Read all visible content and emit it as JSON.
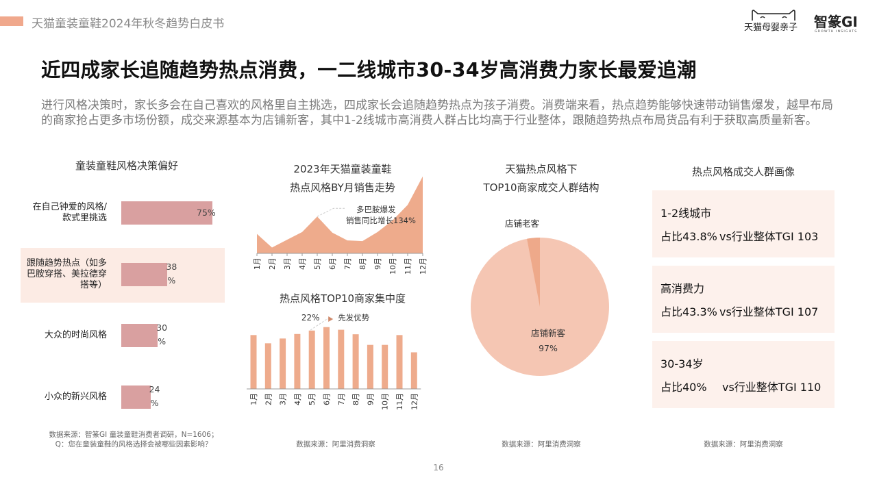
{
  "header": {
    "title": "天猫童装童鞋2024年秋冬趋势白皮书",
    "logo_tmall": "天猫母婴亲子",
    "logo_gi": "智篆GI",
    "logo_gi_sub": "GROWTH INSIGHTS"
  },
  "main_title": "近四成家长追随趋势热点消费，一二线城市30-34岁高消费力家长最爱追潮",
  "summary": "进行风格决策时，家长多会在自己喜欢的风格里自主挑选，四成家长会追随趋势热点为孩子消费。消费端来看，热点趋势能够快速带动销售爆发，越早布局的商家抢占更多市场份额，成交来源基本为店铺新客，其中1-2线城市高消费人群占比均高于行业整体，跟随趋势热点布局货品有利于获取高质量新客。",
  "page_number": "16",
  "colors": {
    "accent": "#f0a88c",
    "bar": "#d9a0a0",
    "area": "#eeab8c",
    "pie_new": "#f5c6b3",
    "pie_old": "#eea98a",
    "card_bg": "#fdf1ec",
    "highlight_bg": "#fcebe4"
  },
  "chart_data": [
    {
      "type": "bar",
      "orientation": "horizontal",
      "title": "童装童鞋风格决策偏好",
      "categories": [
        "在自己钟爱的风格/款式里挑选",
        "跟随趋势热点（如多巴胺穿搭、美拉德穿搭等）",
        "大众的时尚风格",
        "小众的新兴风格"
      ],
      "category_lines": [
        [
          "在自己钟爱的风格/",
          "款式里挑选"
        ],
        [
          "跟随趋势热点（如多",
          "巴胺穿搭、美拉德穿",
          "搭等）"
        ],
        [
          "大众的时尚风格"
        ],
        [
          "小众的新兴风格"
        ]
      ],
      "values": [
        75,
        38,
        30,
        24
      ],
      "value_labels": [
        [
          "75%"
        ],
        [
          "38",
          "%"
        ],
        [
          "30",
          "%"
        ],
        [
          "24",
          "%"
        ]
      ],
      "unit": "%",
      "highlight_index": 1,
      "source": "数据来源：智篆GI 童装童鞋消费者调研，N=1606；Q：您在童装童鞋的风格选择会被哪些因素影响？"
    },
    {
      "type": "area",
      "title": [
        "2023年天猫童装童鞋",
        "热点风格BY月销售走势"
      ],
      "x": [
        "1月",
        "2月",
        "3月",
        "4月",
        "5月",
        "6月",
        "7月",
        "8月",
        "9月",
        "10月",
        "11月",
        "12月"
      ],
      "values": [
        30,
        9,
        21,
        33,
        57,
        32,
        20,
        19,
        33,
        51,
        75,
        119
      ],
      "ylim": [
        0,
        125
      ],
      "annotation": {
        "at": "5月",
        "text": [
          "多巴胺爆发",
          "销售同比增长134%"
        ]
      }
    },
    {
      "type": "bar",
      "title": "热点风格TOP10商家集中度",
      "x": [
        "1月",
        "2月",
        "3月",
        "4月",
        "5月",
        "6月",
        "7月",
        "8月",
        "9月",
        "10月",
        "11月",
        "12月"
      ],
      "values": [
        20.3,
        17.2,
        19.0,
        20.7,
        22.0,
        23.3,
        22.3,
        20.6,
        16.6,
        16.6,
        20.3,
        13.8
      ],
      "ylim": [
        0,
        24
      ],
      "annotation": {
        "at": "5月",
        "value_label": "22%",
        "text": "先发优势"
      },
      "source": "数据来源：阿里消费洞察"
    },
    {
      "type": "pie",
      "title": [
        "天猫热点风格下",
        "TOP10商家成交人群结构"
      ],
      "slices": [
        {
          "label": "店铺新客",
          "value": 97,
          "value_label": "97%"
        },
        {
          "label": "店铺老客",
          "value": 3
        }
      ],
      "source": "数据来源：阿里消费洞察"
    }
  ],
  "audience": {
    "title": "热点风格成交人群画像",
    "cards": [
      {
        "label": "1-2线城市",
        "share": "占比43.8%",
        "tgi": "vs行业整体TGI 103"
      },
      {
        "label": "高消费力",
        "share": "占比43.3%",
        "tgi": "vs行业整体TGI 107"
      },
      {
        "label": "30-34岁",
        "share": "占比40%",
        "tgi": "vs行业整体TGI 110"
      }
    ],
    "source": "数据来源：阿里消费洞察"
  }
}
